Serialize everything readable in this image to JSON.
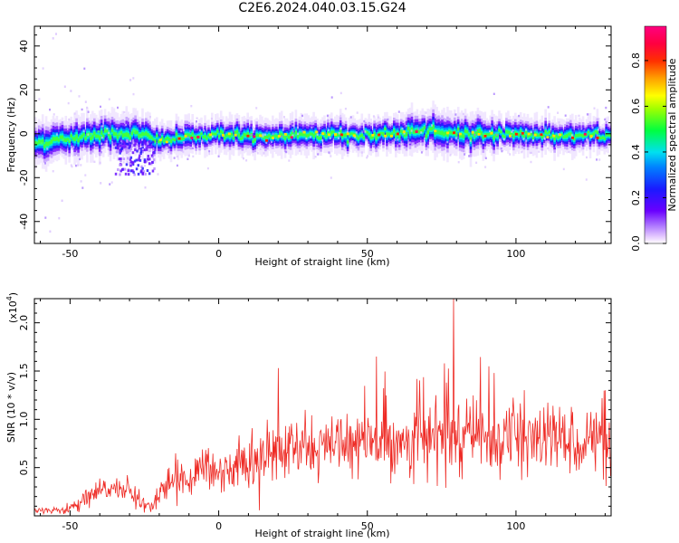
{
  "title": "C2E6.2024.040.03.15.G24",
  "colors": {
    "snr_line": "#ee2a24",
    "spectrogram_colormap": "rainbow (violet-blue-cyan-green-yellow-orange-red-magenta)"
  },
  "chart_data": [
    {
      "type": "heatmap",
      "title": "C2E6.2024.040.03.15.G24",
      "xlabel": "Height of straight line (km)",
      "ylabel": "Frequency (Hz)",
      "xlim": [
        -62,
        132
      ],
      "ylim": [
        -50,
        49
      ],
      "x_ticks": [
        -50,
        0,
        50,
        100
      ],
      "y_ticks": [
        -40,
        -20,
        0,
        20,
        40
      ],
      "colorbar": {
        "label": "Normalized spectral amplitude",
        "range": [
          0.0,
          0.95
        ],
        "ticks": [
          "0.0",
          "0.2",
          "0.4",
          "0.6",
          "0.8"
        ]
      },
      "ridge": {
        "description_points": [
          {
            "x": -60,
            "center": -4,
            "halfwidth": 5
          },
          {
            "x": -40,
            "center": 0,
            "halfwidth": 5
          },
          {
            "x": -28,
            "center": 0,
            "halfwidth": 5
          },
          {
            "x": -20,
            "center": -3,
            "halfwidth": 4
          },
          {
            "x": 0,
            "center": 0,
            "halfwidth": 4
          },
          {
            "x": 15,
            "center": -2,
            "halfwidth": 4
          },
          {
            "x": 30,
            "center": 0,
            "halfwidth": 4
          },
          {
            "x": 50,
            "center": -1,
            "halfwidth": 4
          },
          {
            "x": 65,
            "center": 1,
            "halfwidth": 5
          },
          {
            "x": 85,
            "center": 0,
            "halfwidth": 5
          },
          {
            "x": 100,
            "center": 0,
            "halfwidth": 4
          },
          {
            "x": 115,
            "center": -1,
            "halfwidth": 4
          },
          {
            "x": 132,
            "center": -1,
            "halfwidth": 4
          }
        ],
        "low_frequency_blob": {
          "x_range": [
            -35,
            -22
          ],
          "frequency_range": [
            -18,
            -2
          ]
        }
      }
    },
    {
      "type": "line",
      "xlabel": "Height of straight line (km)",
      "ylabel": "SNR (10 * v/v)",
      "y_scale_label": "(x10",
      "y_scale_exponent": "4",
      "y_scale_suffix": ")",
      "xlim": [
        -62,
        132
      ],
      "ylim": [
        0,
        2.25
      ],
      "x_ticks": [
        -50,
        0,
        50,
        100
      ],
      "y_ticks": [
        "0.5",
        "1.0",
        "1.5",
        "2.0"
      ],
      "y_tick_values": [
        0.5,
        1.0,
        1.5,
        2.0
      ],
      "series": [
        {
          "x": [
            -62,
            -55,
            -50,
            -45,
            -40,
            -35,
            -30,
            -25,
            -22,
            -20,
            -15,
            -10,
            -5,
            0,
            5,
            10,
            15,
            20,
            25,
            30,
            40,
            50,
            60,
            70,
            80,
            90,
            100,
            110,
            120,
            132
          ],
          "y_mean": [
            0.05,
            0.05,
            0.08,
            0.15,
            0.25,
            0.3,
            0.25,
            0.12,
            0.08,
            0.28,
            0.35,
            0.42,
            0.45,
            0.47,
            0.5,
            0.55,
            0.6,
            0.65,
            0.68,
            0.7,
            0.72,
            0.75,
            0.78,
            0.8,
            0.82,
            0.82,
            0.8,
            0.8,
            0.78,
            0.8
          ],
          "peaks": [
            {
              "x": 20,
              "y": 1.53
            },
            {
              "x": 53,
              "y": 1.65
            },
            {
              "x": 76,
              "y": 1.58
            },
            {
              "x": 79,
              "y": 2.25
            },
            {
              "x": 91,
              "y": 1.55
            },
            {
              "x": 130,
              "y": 1.3
            }
          ]
        }
      ]
    }
  ]
}
